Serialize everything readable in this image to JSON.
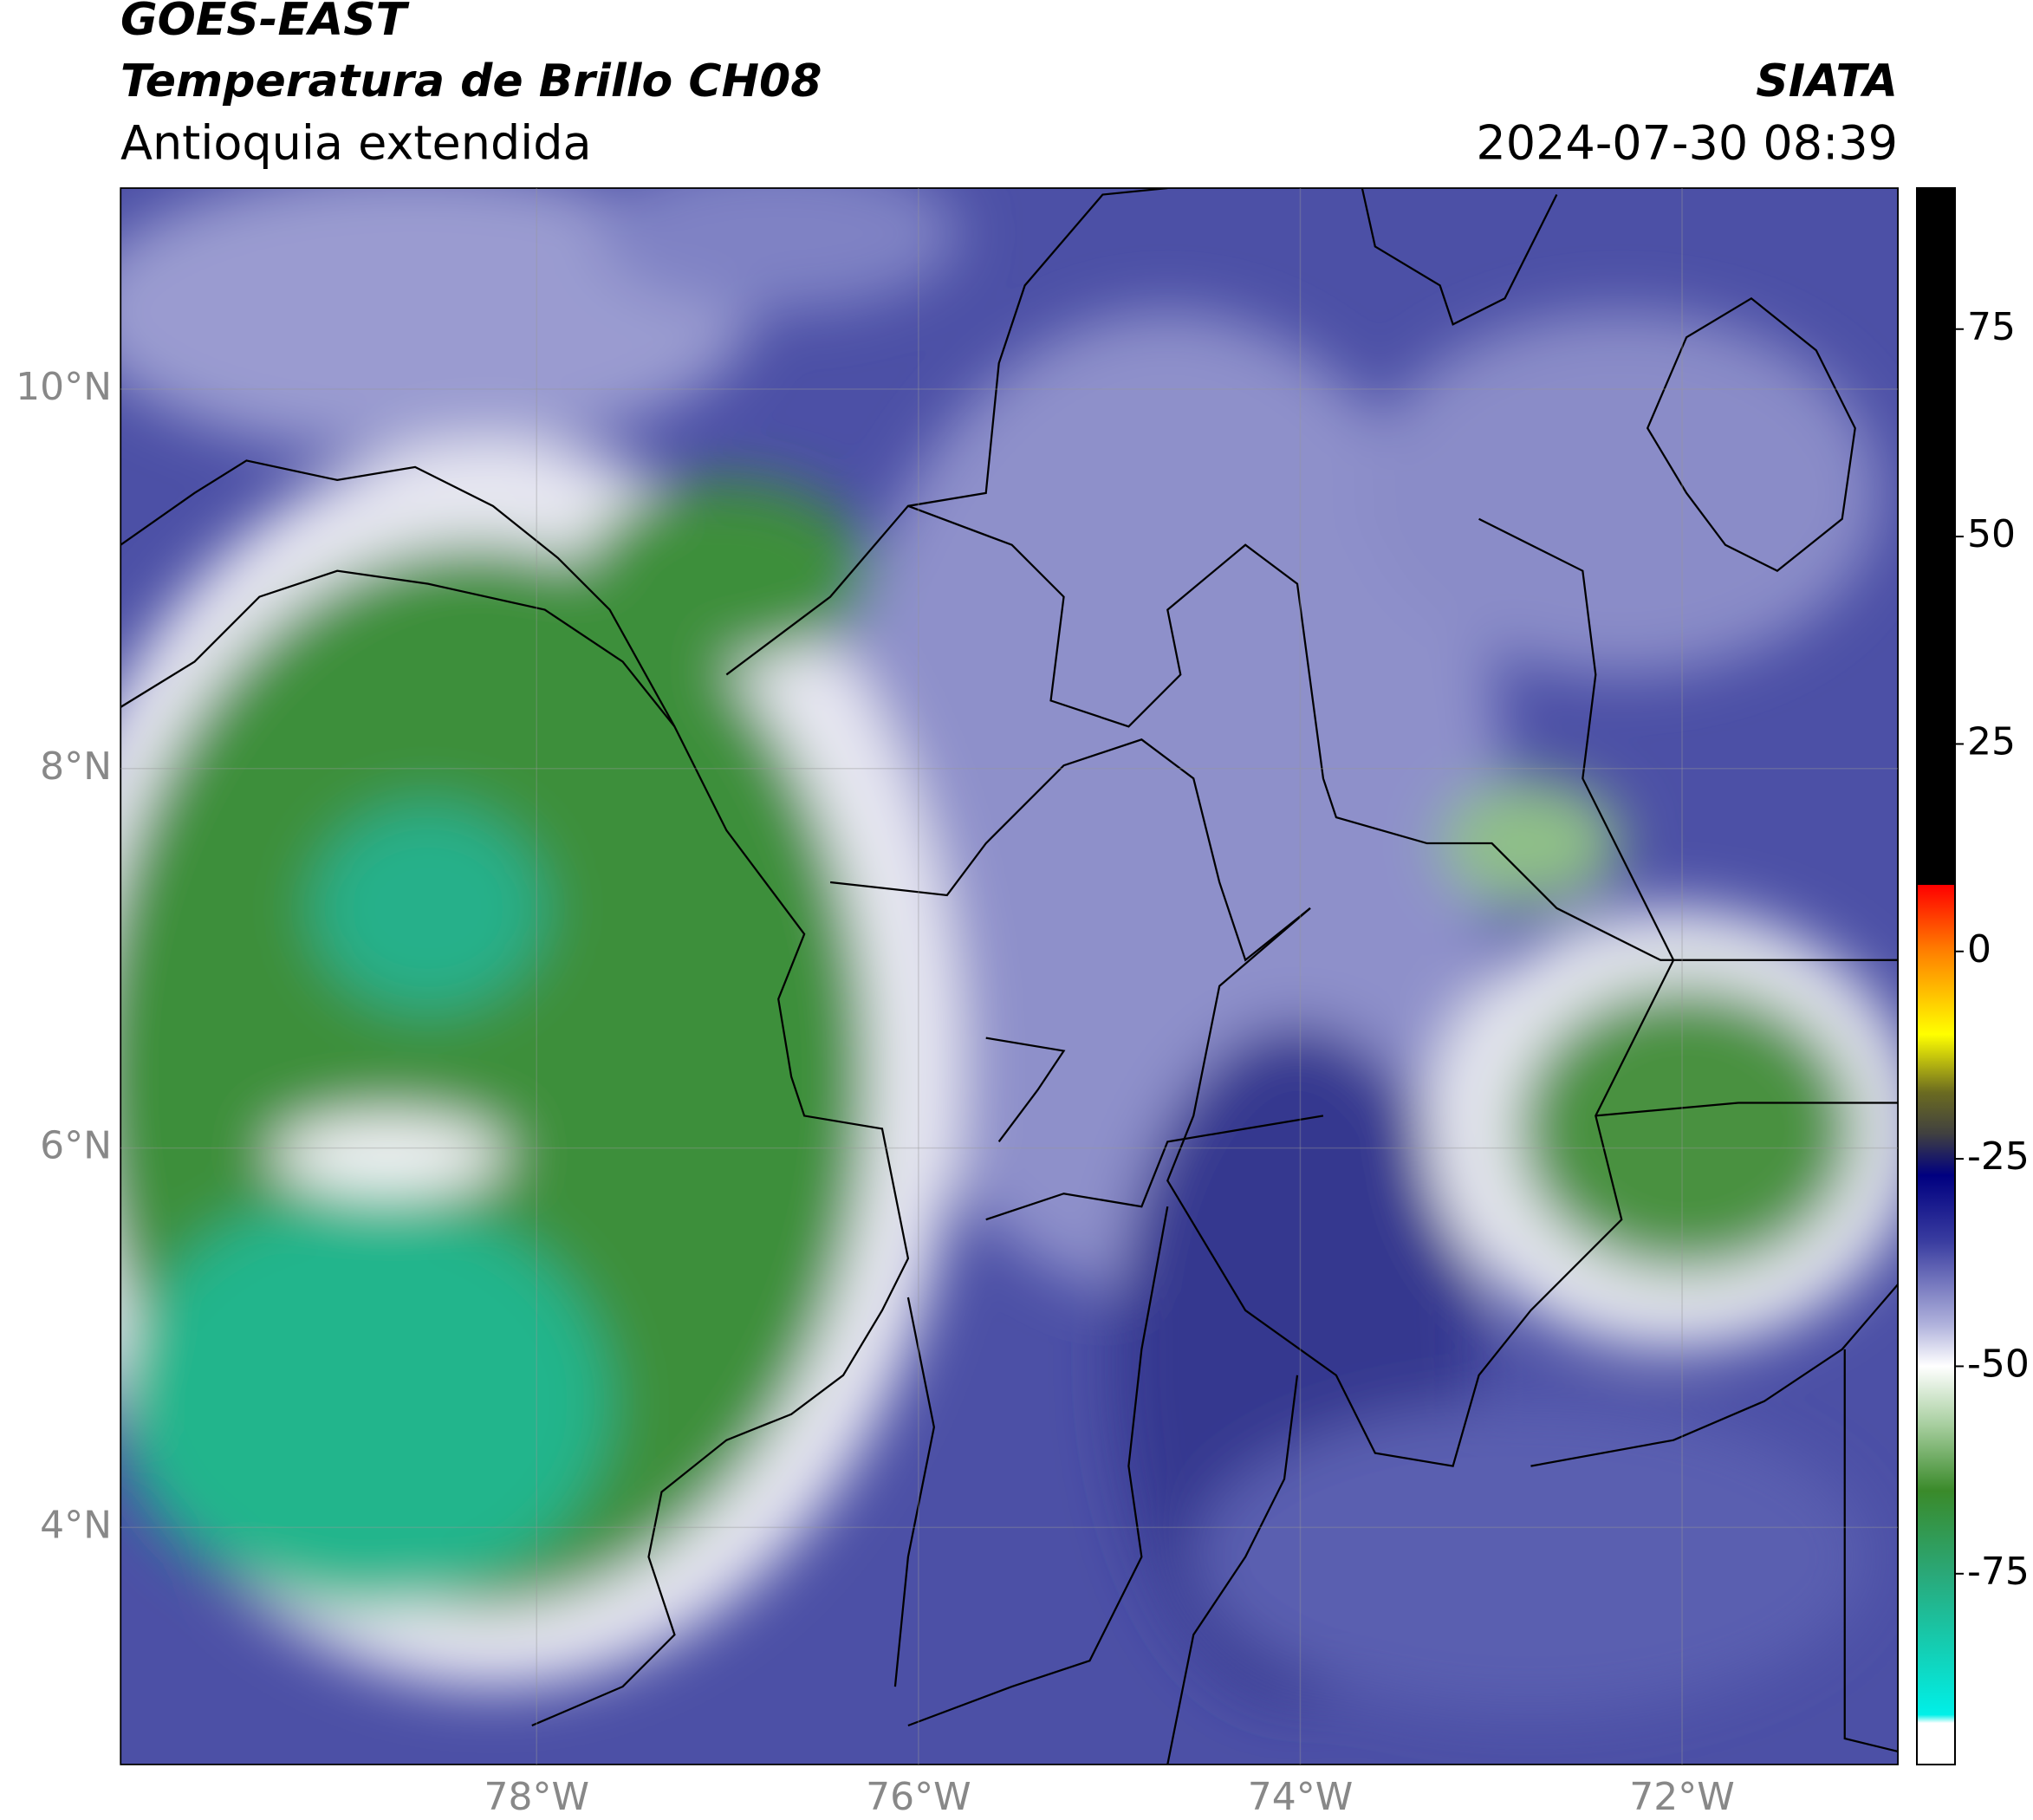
{
  "header": {
    "satellite": "GOES-EAST",
    "product": "Temperatura de Brillo CH08",
    "region": "Antioquia extendida",
    "agency": "SIATA",
    "datetime": "2024-07-30 08:39"
  },
  "map": {
    "lonlim": [
      -80.18,
      -70.87
    ],
    "latlim": [
      2.75,
      11.06
    ],
    "xticks": [
      {
        "value": -78,
        "label": "78°W"
      },
      {
        "value": -76,
        "label": "76°W"
      },
      {
        "value": -74,
        "label": "74°W"
      },
      {
        "value": -72,
        "label": "72°W"
      }
    ],
    "yticks": [
      {
        "value": 10,
        "label": "10°N"
      },
      {
        "value": 8,
        "label": "8°N"
      },
      {
        "value": 6,
        "label": "6°N"
      },
      {
        "value": 4,
        "label": "4°N"
      }
    ],
    "grid": true
  },
  "colorbar": {
    "clim": [
      -98,
      92
    ],
    "ticks": [
      75,
      50,
      25,
      0,
      -25,
      -50,
      -75
    ],
    "colormap": [
      {
        "value": 92,
        "color": "#000000"
      },
      {
        "value": 8,
        "color": "#000000"
      },
      {
        "value": 8,
        "color": "#ff0000"
      },
      {
        "value": 0,
        "color": "#ff8000"
      },
      {
        "value": -10,
        "color": "#ffff00"
      },
      {
        "value": -17,
        "color": "#6b6b20"
      },
      {
        "value": -22,
        "color": "#404040"
      },
      {
        "value": -27,
        "color": "#000080"
      },
      {
        "value": -35,
        "color": "#3a3da0"
      },
      {
        "value": -45,
        "color": "#b0b2dc"
      },
      {
        "value": -50,
        "color": "#ffffff"
      },
      {
        "value": -57,
        "color": "#a8cfa0"
      },
      {
        "value": -65,
        "color": "#3a8a2a"
      },
      {
        "value": -75,
        "color": "#2aa878"
      },
      {
        "value": -92,
        "color": "#00f0e8"
      },
      {
        "value": -93,
        "color": "#ffffff"
      },
      {
        "value": -98,
        "color": "#ffffff"
      }
    ]
  }
}
